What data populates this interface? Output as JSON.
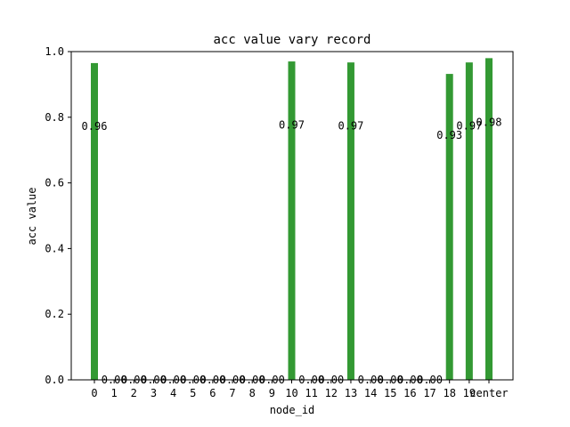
{
  "chart_data": {
    "type": "bar",
    "title": "acc value vary record",
    "xlabel": "node_id",
    "ylabel": "acc value",
    "categories": [
      "0",
      "1",
      "2",
      "3",
      "4",
      "5",
      "6",
      "7",
      "8",
      "9",
      "10",
      "11",
      "12",
      "13",
      "14",
      "15",
      "16",
      "17",
      "18",
      "19",
      "center"
    ],
    "values": [
      0.965,
      0.0,
      0.0,
      0.0,
      0.0,
      0.0,
      0.0,
      0.0,
      0.0,
      0.0,
      0.97,
      0.0,
      0.0,
      0.967,
      0.0,
      0.0,
      0.0,
      0.0,
      0.932,
      0.967,
      0.98
    ],
    "labels": [
      "0.96",
      "0.00",
      "0.00",
      "0.00",
      "0.00",
      "0.00",
      "0.00",
      "0.00",
      "0.00",
      "0.00",
      "0.97",
      "0.00",
      "0.00",
      "0.97",
      "0.00",
      "0.00",
      "0.00",
      "0.00",
      "0.93",
      "0.97",
      "0.98"
    ],
    "ylim": [
      0,
      1.0
    ],
    "yticks": [
      "0.0",
      "0.2",
      "0.4",
      "0.6",
      "0.8",
      "1.0"
    ],
    "bar_color": "#339933",
    "grid": false,
    "legend": "none"
  }
}
